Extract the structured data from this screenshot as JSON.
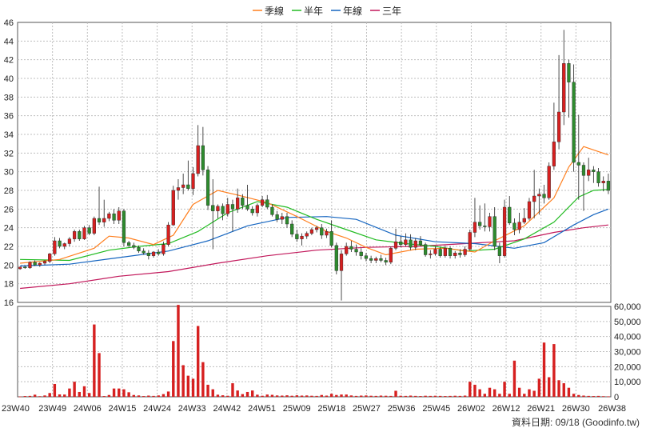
{
  "chart_data": {
    "type": "candlestick",
    "legend": [
      {
        "label": "季線",
        "color": "#ff7f1e"
      },
      {
        "label": "半年",
        "color": "#22bb22"
      },
      {
        "label": "年線",
        "color": "#1565c0"
      },
      {
        "label": "三年",
        "color": "#c2185b"
      }
    ],
    "colors": {
      "up": "#d62020",
      "down": "#2e8b2e",
      "volume": "#d62020",
      "grid": "#bfbfbf"
    },
    "price_axis": {
      "min": 16,
      "max": 46,
      "ticks": [
        16,
        18,
        20,
        22,
        24,
        26,
        28,
        30,
        32,
        34,
        36,
        38,
        40,
        42,
        44,
        46
      ]
    },
    "volume_axis": {
      "min": 0,
      "max": 60000,
      "ticks": [
        "0",
        "10,000",
        "20,000",
        "30,000",
        "40,000",
        "50,000",
        "60,000"
      ],
      "tick_values": [
        0,
        10000,
        20000,
        30000,
        40000,
        50000,
        60000
      ]
    },
    "x_labels": [
      "23W40",
      "23W49",
      "24W06",
      "24W15",
      "24W24",
      "24W33",
      "24W42",
      "24W51",
      "25W09",
      "25W18",
      "25W27",
      "25W36",
      "25W45",
      "26W02",
      "26W12",
      "26W21",
      "26W30",
      "26W38"
    ],
    "candles": [
      [
        19.6,
        19.8,
        19.5,
        19.8
      ],
      [
        19.8,
        19.9,
        19.6,
        19.7
      ],
      [
        19.7,
        20.4,
        19.6,
        20.3
      ],
      [
        20.3,
        20.5,
        19.9,
        20.0
      ],
      [
        20.0,
        20.3,
        19.8,
        20.2
      ],
      [
        20.2,
        20.5,
        20.0,
        20.4
      ],
      [
        20.4,
        21.3,
        20.2,
        21.2
      ],
      [
        21.2,
        23.0,
        21.0,
        22.6
      ],
      [
        22.6,
        22.9,
        21.8,
        22.0
      ],
      [
        22.0,
        22.4,
        21.7,
        22.3
      ],
      [
        22.3,
        23.0,
        22.0,
        22.8
      ],
      [
        22.8,
        23.8,
        22.5,
        23.6
      ],
      [
        23.6,
        23.8,
        22.6,
        22.8
      ],
      [
        22.8,
        24.2,
        22.7,
        24.0
      ],
      [
        24.0,
        24.3,
        23.2,
        23.4
      ],
      [
        23.4,
        25.2,
        23.2,
        25.0
      ],
      [
        25.0,
        28.4,
        24.3,
        24.6
      ],
      [
        24.6,
        27.0,
        24.1,
        25.0
      ],
      [
        25.0,
        25.7,
        24.7,
        25.5
      ],
      [
        25.5,
        26.0,
        24.4,
        24.8
      ],
      [
        24.8,
        26.2,
        24.4,
        25.8
      ],
      [
        25.8,
        26.0,
        22.0,
        22.4
      ],
      [
        22.4,
        22.6,
        21.9,
        22.1
      ],
      [
        22.1,
        22.4,
        21.7,
        21.9
      ],
      [
        21.9,
        22.1,
        21.3,
        21.5
      ],
      [
        21.5,
        21.8,
        21.1,
        21.3
      ],
      [
        21.3,
        21.6,
        20.6,
        21.0
      ],
      [
        21.0,
        21.5,
        20.8,
        21.4
      ],
      [
        21.4,
        21.7,
        21.0,
        21.2
      ],
      [
        21.2,
        22.5,
        21.0,
        22.2
      ],
      [
        22.2,
        24.6,
        22.0,
        24.3
      ],
      [
        24.3,
        28.5,
        24.2,
        28.0
      ],
      [
        28.0,
        29.2,
        27.0,
        28.3
      ],
      [
        28.3,
        29.8,
        27.6,
        28.6
      ],
      [
        28.6,
        31.2,
        28.0,
        28.2
      ],
      [
        28.2,
        30.5,
        27.5,
        29.8
      ],
      [
        29.8,
        35.0,
        29.5,
        32.8
      ],
      [
        32.8,
        34.8,
        29.6,
        30.2
      ],
      [
        30.2,
        30.6,
        25.9,
        26.4
      ],
      [
        26.4,
        29.2,
        21.7,
        25.8
      ],
      [
        25.8,
        26.5,
        25.0,
        26.3
      ],
      [
        26.3,
        26.6,
        24.8,
        25.5
      ],
      [
        25.5,
        27.2,
        25.2,
        26.5
      ],
      [
        26.5,
        27.0,
        23.6,
        26.0
      ],
      [
        26.0,
        28.2,
        25.6,
        27.2
      ],
      [
        27.2,
        27.6,
        26.0,
        26.4
      ],
      [
        26.4,
        28.6,
        25.8,
        26.0
      ],
      [
        26.0,
        26.3,
        25.3,
        25.6
      ],
      [
        25.6,
        26.6,
        25.2,
        26.4
      ],
      [
        26.4,
        27.4,
        26.2,
        27.0
      ],
      [
        27.0,
        27.5,
        26.0,
        26.2
      ],
      [
        26.2,
        26.5,
        25.2,
        25.4
      ],
      [
        25.4,
        25.8,
        24.6,
        24.9
      ],
      [
        24.9,
        25.6,
        24.4,
        25.2
      ],
      [
        25.2,
        25.6,
        24.0,
        24.4
      ],
      [
        24.4,
        24.8,
        23.0,
        23.3
      ],
      [
        23.3,
        23.8,
        22.5,
        22.8
      ],
      [
        22.8,
        23.4,
        22.1,
        23.1
      ],
      [
        23.1,
        23.6,
        22.8,
        23.4
      ],
      [
        23.4,
        24.0,
        23.2,
        23.8
      ],
      [
        23.8,
        24.2,
        23.5,
        24.0
      ],
      [
        24.0,
        24.4,
        22.8,
        23.2
      ],
      [
        23.2,
        23.9,
        22.9,
        23.6
      ],
      [
        23.6,
        24.8,
        21.9,
        22.1
      ],
      [
        22.1,
        22.4,
        19.0,
        19.4
      ],
      [
        19.4,
        21.6,
        16.2,
        21.2
      ],
      [
        21.2,
        22.4,
        21.0,
        22.0
      ],
      [
        22.0,
        22.6,
        21.4,
        21.7
      ],
      [
        21.7,
        22.2,
        21.0,
        21.4
      ],
      [
        21.4,
        21.8,
        20.6,
        21.0
      ],
      [
        21.0,
        21.3,
        20.4,
        20.7
      ],
      [
        20.7,
        21.0,
        20.2,
        20.5
      ],
      [
        20.5,
        20.9,
        20.2,
        20.7
      ],
      [
        20.7,
        21.1,
        20.3,
        20.5
      ],
      [
        20.5,
        20.8,
        20.0,
        20.3
      ],
      [
        20.3,
        22.0,
        20.1,
        21.8
      ],
      [
        21.8,
        23.9,
        21.6,
        22.5
      ],
      [
        22.5,
        23.1,
        21.9,
        22.2
      ],
      [
        22.2,
        23.4,
        22.0,
        22.7
      ],
      [
        22.7,
        23.3,
        21.6,
        21.9
      ],
      [
        21.9,
        22.9,
        21.6,
        22.6
      ],
      [
        22.6,
        23.1,
        22.0,
        22.2
      ],
      [
        22.2,
        22.4,
        20.9,
        21.1
      ],
      [
        21.1,
        21.6,
        20.7,
        21.2
      ],
      [
        21.2,
        22.0,
        21.0,
        21.7
      ],
      [
        21.7,
        21.9,
        20.8,
        21.0
      ],
      [
        21.0,
        22.1,
        20.8,
        21.8
      ],
      [
        21.8,
        22.0,
        20.7,
        21.0
      ],
      [
        21.0,
        21.5,
        20.7,
        21.3
      ],
      [
        21.3,
        21.7,
        20.8,
        21.1
      ],
      [
        21.1,
        22.0,
        20.9,
        21.7
      ],
      [
        21.7,
        23.8,
        21.5,
        23.5
      ],
      [
        23.5,
        27.2,
        23.0,
        24.6
      ],
      [
        24.6,
        26.4,
        23.8,
        24.2
      ],
      [
        24.2,
        26.6,
        23.6,
        24.1
      ],
      [
        24.1,
        25.6,
        23.6,
        25.2
      ],
      [
        25.2,
        26.2,
        21.6,
        22.0
      ],
      [
        22.0,
        22.4,
        20.2,
        21.0
      ],
      [
        21.0,
        27.0,
        20.8,
        26.2
      ],
      [
        26.2,
        27.4,
        24.3,
        24.5
      ],
      [
        24.5,
        25.0,
        23.2,
        23.8
      ],
      [
        23.8,
        25.6,
        23.4,
        24.6
      ],
      [
        24.6,
        26.1,
        24.4,
        25.0
      ],
      [
        25.0,
        27.2,
        24.8,
        26.8
      ],
      [
        26.8,
        30.2,
        25.0,
        27.4
      ],
      [
        27.4,
        28.2,
        25.4,
        27.6
      ],
      [
        27.6,
        28.6,
        26.6,
        27.2
      ],
      [
        27.2,
        31.0,
        27.0,
        30.6
      ],
      [
        30.6,
        37.4,
        30.2,
        33.2
      ],
      [
        33.2,
        42.5,
        32.4,
        36.4
      ],
      [
        36.4,
        45.2,
        35.0,
        41.6
      ],
      [
        41.6,
        42.0,
        35.8,
        39.6
      ],
      [
        39.6,
        41.5,
        30.0,
        31.0
      ],
      [
        31.0,
        36.1,
        27.0,
        30.7
      ],
      [
        30.7,
        31.0,
        25.8,
        29.6
      ],
      [
        29.6,
        31.5,
        29.0,
        30.2
      ],
      [
        30.2,
        30.6,
        28.8,
        30.0
      ],
      [
        30.0,
        30.4,
        28.4,
        28.8
      ],
      [
        28.8,
        29.5,
        27.9,
        29.0
      ],
      [
        29.0,
        29.8,
        27.6,
        28.0
      ]
    ],
    "volume": [
      200,
      500,
      600,
      1400,
      400,
      900,
      2500,
      8500,
      1600,
      1500,
      5500,
      10000,
      3200,
      7000,
      2500,
      48000,
      29000,
      500,
      1200,
      5500,
      5500,
      5000,
      3000,
      1200,
      900,
      500,
      800,
      600,
      900,
      1800,
      3500,
      37000,
      61000,
      21000,
      14000,
      12000,
      47000,
      23000,
      8000,
      5000,
      1400,
      1000,
      700,
      9000,
      4200,
      1800,
      3200,
      4200,
      1400,
      700,
      1500,
      1300,
      900,
      800,
      1000,
      700,
      1000,
      800,
      900,
      700,
      600,
      1200,
      800,
      2000,
      1200,
      1500,
      1500,
      900,
      600,
      800,
      900,
      700,
      600,
      800,
      700,
      600,
      4000,
      700,
      600,
      800,
      600,
      500,
      700,
      600,
      700,
      600,
      500,
      600,
      700,
      600,
      800,
      10000,
      8000,
      5000,
      2000,
      6000,
      5000,
      2000,
      10000,
      2000,
      24000,
      6000,
      2000,
      5000,
      4000,
      12000,
      36000,
      13000,
      35000,
      11000,
      9000,
      6000,
      2000,
      1200,
      800,
      600,
      500,
      600,
      400,
      300
    ],
    "ma_quarter": [
      [
        0,
        20.2
      ],
      [
        8,
        20.6
      ],
      [
        15,
        21.8
      ],
      [
        18,
        23.1
      ],
      [
        22,
        22.9
      ],
      [
        27,
        22.2
      ],
      [
        31,
        23.2
      ],
      [
        35,
        26.5
      ],
      [
        40,
        28.0
      ],
      [
        44,
        27.5
      ],
      [
        50,
        26.7
      ],
      [
        56,
        25.2
      ],
      [
        62,
        23.6
      ],
      [
        66,
        22.9
      ],
      [
        70,
        21.9
      ],
      [
        74,
        21.1
      ],
      [
        80,
        21.7
      ],
      [
        86,
        21.8
      ],
      [
        92,
        21.4
      ],
      [
        96,
        22.6
      ],
      [
        102,
        24.2
      ],
      [
        108,
        27.2
      ],
      [
        111,
        30.5
      ],
      [
        114,
        32.7
      ],
      [
        119,
        31.8
      ]
    ],
    "ma_half": [
      [
        0,
        20.6
      ],
      [
        10,
        20.5
      ],
      [
        18,
        21.6
      ],
      [
        24,
        22.0
      ],
      [
        30,
        22.3
      ],
      [
        36,
        23.6
      ],
      [
        42,
        25.6
      ],
      [
        48,
        26.8
      ],
      [
        54,
        26.2
      ],
      [
        60,
        24.9
      ],
      [
        66,
        23.8
      ],
      [
        72,
        22.7
      ],
      [
        78,
        22.3
      ],
      [
        84,
        22.0
      ],
      [
        90,
        21.5
      ],
      [
        96,
        21.7
      ],
      [
        102,
        22.8
      ],
      [
        108,
        24.6
      ],
      [
        113,
        27.3
      ],
      [
        116,
        28.0
      ],
      [
        119,
        28.1
      ]
    ],
    "ma_year": [
      [
        0,
        19.9
      ],
      [
        10,
        20.1
      ],
      [
        20,
        20.8
      ],
      [
        30,
        21.5
      ],
      [
        38,
        22.6
      ],
      [
        46,
        24.2
      ],
      [
        54,
        25.1
      ],
      [
        62,
        25.2
      ],
      [
        68,
        24.9
      ],
      [
        76,
        23.2
      ],
      [
        84,
        22.5
      ],
      [
        92,
        22.3
      ],
      [
        100,
        21.8
      ],
      [
        106,
        22.4
      ],
      [
        112,
        24.3
      ],
      [
        116,
        25.4
      ],
      [
        119,
        26.0
      ]
    ],
    "ma_3year": [
      [
        0,
        17.5
      ],
      [
        10,
        18.0
      ],
      [
        20,
        18.8
      ],
      [
        30,
        19.3
      ],
      [
        40,
        20.2
      ],
      [
        50,
        21.0
      ],
      [
        60,
        21.6
      ],
      [
        70,
        21.9
      ],
      [
        80,
        22.0
      ],
      [
        90,
        22.3
      ],
      [
        100,
        22.6
      ],
      [
        108,
        23.5
      ],
      [
        114,
        24.0
      ],
      [
        119,
        24.3
      ]
    ],
    "footer": "資料日期: 09/18  (Goodinfo.tw)"
  }
}
